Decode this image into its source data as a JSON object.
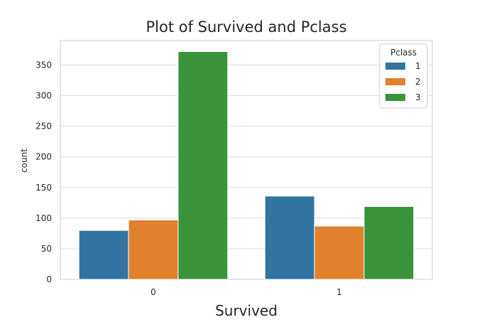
{
  "chart_data": {
    "type": "bar",
    "title": "Plot of Survived and Pclass",
    "xlabel": "Survived",
    "ylabel": "count",
    "categories": [
      "0",
      "1"
    ],
    "ylim": [
      0,
      390
    ],
    "yticks": [
      0,
      50,
      100,
      150,
      200,
      250,
      300,
      350
    ],
    "grid": "horizontal",
    "legend": {
      "title": "Pclass",
      "placement": "top-right"
    },
    "series": [
      {
        "name": "1",
        "color": "#3274a1",
        "values": [
          80,
          136
        ]
      },
      {
        "name": "2",
        "color": "#e1812c",
        "values": [
          97,
          87
        ]
      },
      {
        "name": "3",
        "color": "#3a923a",
        "values": [
          372,
          119
        ]
      }
    ]
  }
}
